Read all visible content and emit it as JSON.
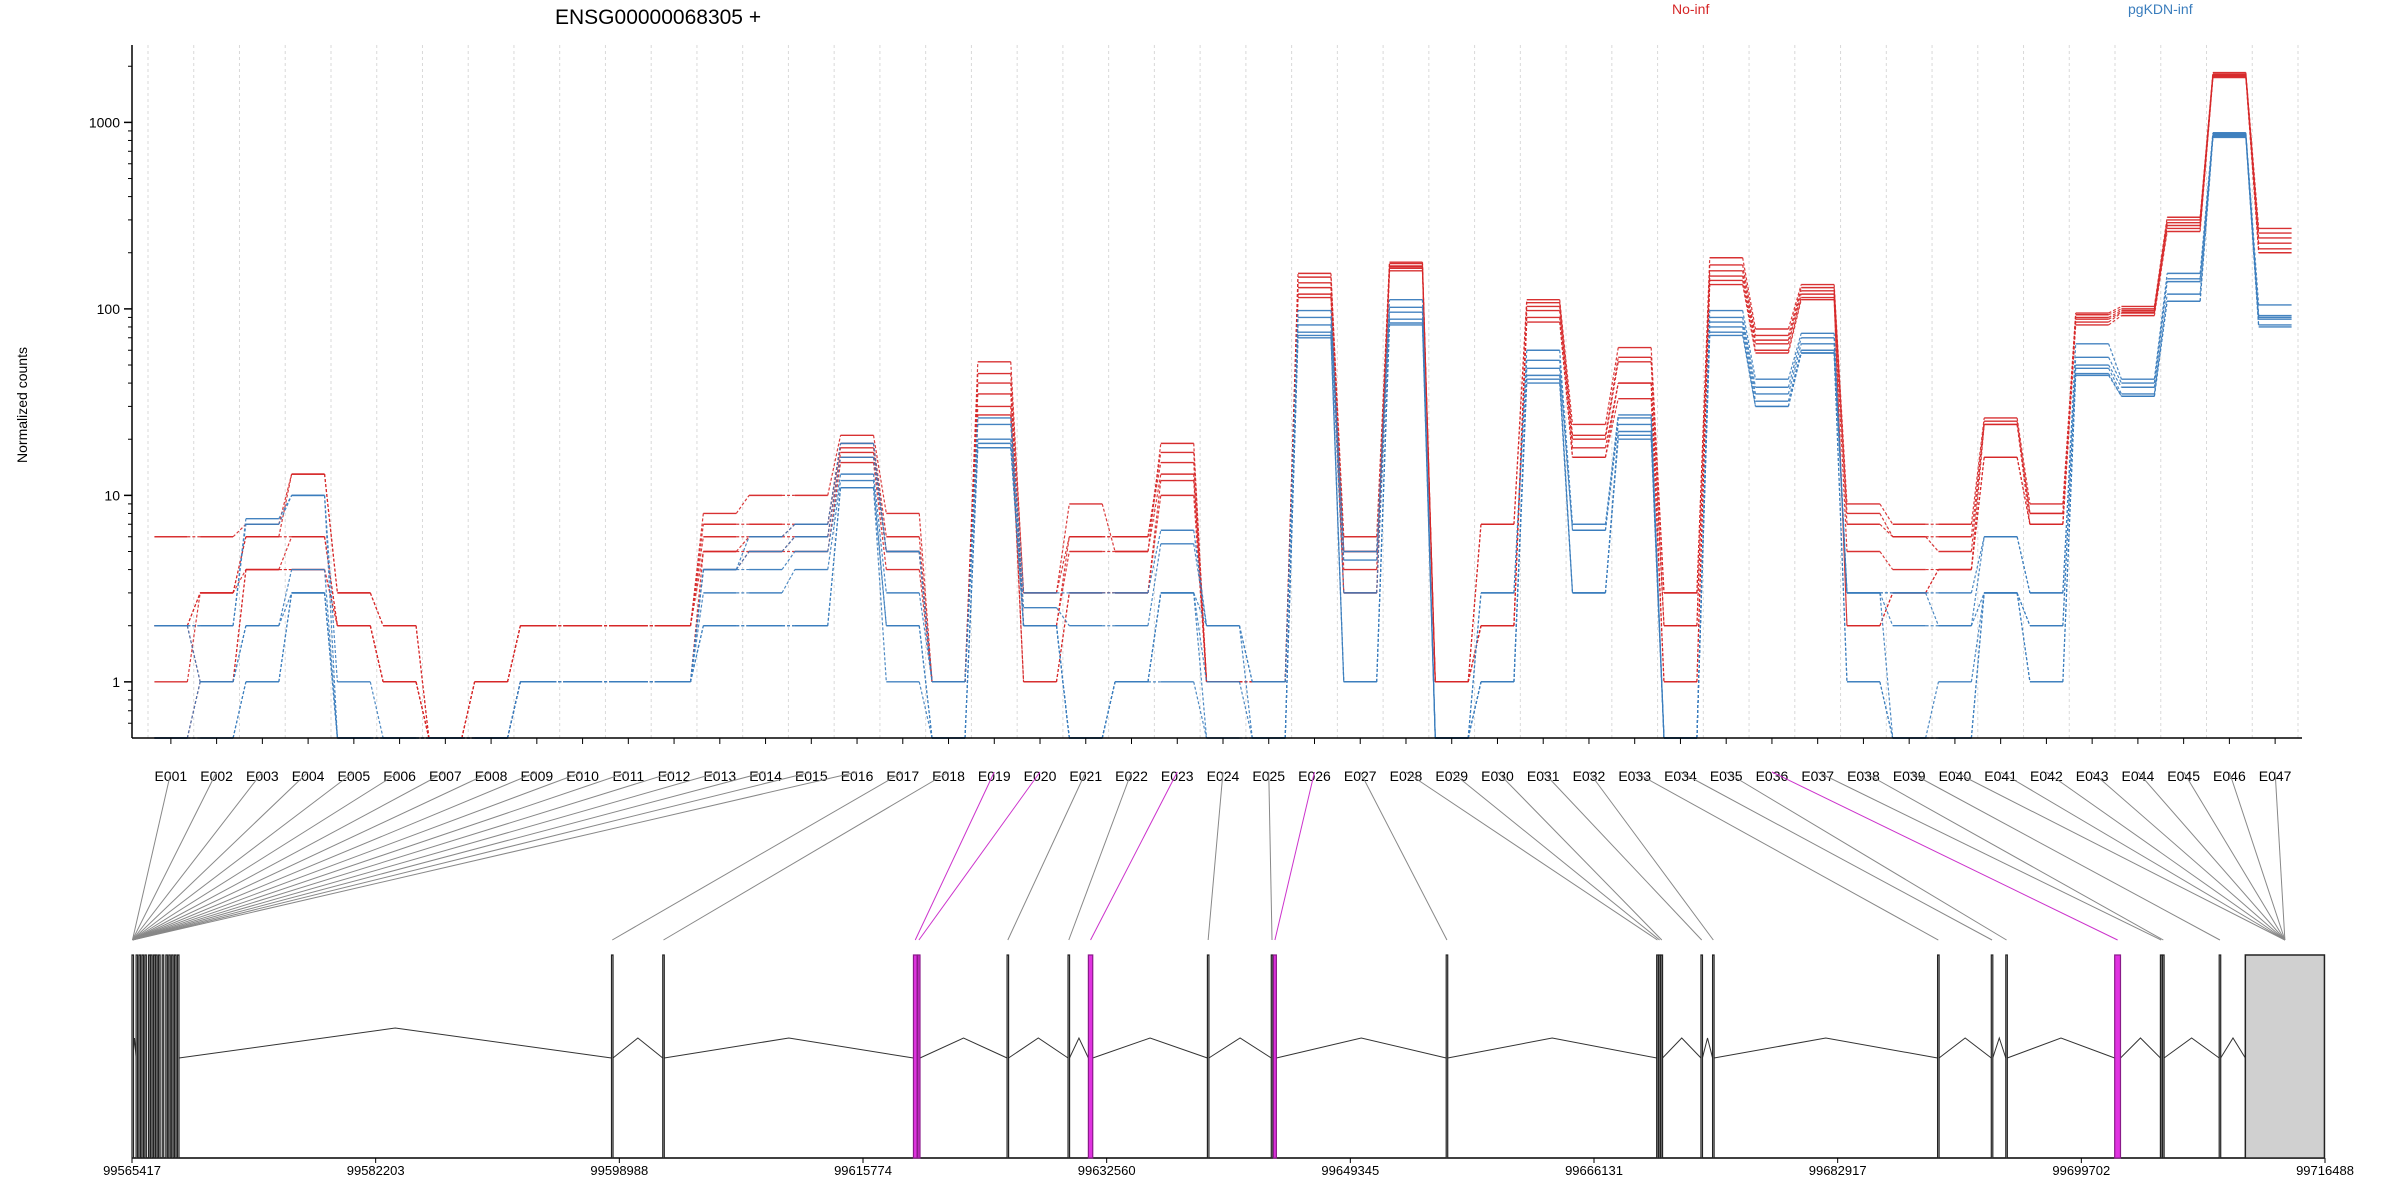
{
  "chart_data": {
    "type": "line",
    "title": "ENSG00000068305 +",
    "ylabel": "Normalized counts",
    "xlabel": "",
    "y_scale": "log",
    "ylim": [
      0.5,
      2600
    ],
    "y_ticks": [
      1,
      10,
      100,
      1000
    ],
    "y_tick_labels": [
      "1",
      "10",
      "100",
      "1000"
    ],
    "grid": "vertical dashed lines at exon boundaries",
    "colors": {
      "No-inf": "#d62728",
      "pgKDN-inf": "#3a7dbd",
      "highlight": "#cc33cc",
      "connector": "#888888"
    },
    "categories": [
      "E001",
      "E002",
      "E003",
      "E004",
      "E005",
      "E006",
      "E007",
      "E008",
      "E009",
      "E010",
      "E011",
      "E012",
      "E013",
      "E014",
      "E015",
      "E016",
      "E017",
      "E018",
      "E019",
      "E020",
      "E021",
      "E022",
      "E023",
      "E024",
      "E025",
      "E026",
      "E027",
      "E028",
      "E029",
      "E030",
      "E031",
      "E032",
      "E033",
      "E034",
      "E035",
      "E036",
      "E037",
      "E038",
      "E039",
      "E040",
      "E041",
      "E042",
      "E043",
      "E044",
      "E045",
      "E046",
      "E047"
    ],
    "legend": [
      {
        "name": "No-inf",
        "color": "#d62728"
      },
      {
        "name": "pgKDN-inf",
        "color": "#3a7dbd"
      }
    ],
    "series": [
      {
        "name": "No-inf",
        "group": "No-inf",
        "values": [
          6,
          6,
          7,
          13,
          3,
          2,
          0.5,
          1,
          2,
          2,
          2,
          2,
          8,
          10,
          10,
          21,
          8,
          1,
          52,
          3,
          9,
          5,
          19,
          1,
          1,
          155,
          6,
          178,
          1,
          7,
          112,
          24,
          62,
          3,
          188,
          78,
          135,
          9,
          7,
          7,
          26,
          9,
          95,
          103,
          310,
          1850,
          270
        ]
      },
      {
        "name": "No-inf",
        "group": "No-inf",
        "values": [
          2,
          3,
          6,
          13,
          3,
          2,
          0.5,
          1,
          2,
          2,
          2,
          2,
          7,
          7,
          7,
          19,
          6,
          1,
          45,
          3,
          6,
          6,
          17,
          1,
          1,
          148,
          5,
          175,
          1,
          7,
          108,
          21,
          55,
          3,
          172,
          72,
          130,
          8,
          6,
          6,
          25,
          8,
          93,
          100,
          300,
          1820,
          255
        ]
      },
      {
        "name": "No-inf",
        "group": "No-inf",
        "values": [
          2,
          3,
          6,
          6,
          2,
          1,
          0.5,
          1,
          2,
          2,
          2,
          2,
          6,
          6,
          7,
          18,
          5,
          1,
          40,
          2,
          6,
          6,
          15,
          1,
          1,
          138,
          5,
          170,
          1,
          2,
          103,
          20,
          52,
          2,
          160,
          68,
          125,
          7,
          6,
          5,
          24,
          8,
          90,
          98,
          290,
          1800,
          240
        ]
      },
      {
        "name": "No-inf",
        "group": "No-inf",
        "values": [
          1,
          3,
          4,
          6,
          2,
          1,
          0.5,
          1,
          2,
          2,
          2,
          2,
          5,
          6,
          6,
          17,
          5,
          1,
          35,
          2,
          5,
          5,
          13,
          1,
          1,
          130,
          4,
          168,
          1,
          2,
          98,
          18,
          40,
          2,
          150,
          65,
          120,
          5,
          4,
          4,
          24,
          7,
          88,
          96,
          280,
          1780,
          225
        ]
      },
      {
        "name": "No-inf",
        "group": "No-inf",
        "values": [
          2,
          1,
          4,
          4,
          2,
          1,
          0.5,
          0.5,
          1,
          1,
          1,
          1,
          5,
          5,
          6,
          16,
          5,
          1,
          30,
          1,
          3,
          3,
          12,
          1,
          1,
          120,
          3,
          165,
          1,
          2,
          90,
          16,
          40,
          1,
          142,
          60,
          115,
          2,
          3,
          4,
          16,
          7,
          85,
          95,
          270,
          1760,
          210
        ]
      },
      {
        "name": "No-inf",
        "group": "No-inf",
        "values": [
          0.5,
          1,
          4,
          4,
          2,
          1,
          0.5,
          0.5,
          1,
          1,
          1,
          1,
          4,
          5,
          5,
          15,
          4,
          1,
          27,
          1,
          3,
          3,
          10,
          1,
          1,
          115,
          3,
          160,
          1,
          2,
          85,
          16,
          33,
          1,
          135,
          58,
          112,
          2,
          3,
          4,
          16,
          7,
          82,
          92,
          260,
          1740,
          200
        ]
      },
      {
        "name": "pgKDN-inf",
        "group": "pgKDN-inf",
        "values": [
          2,
          2,
          7.5,
          10,
          1,
          0.5,
          0.5,
          0.5,
          1,
          1,
          1,
          1,
          4,
          6,
          7,
          19,
          5,
          1,
          26,
          3,
          3,
          3,
          6.5,
          2,
          1,
          98,
          5,
          112,
          0.5,
          3,
          60,
          7,
          27,
          0.5,
          98,
          42,
          74,
          3,
          3,
          3,
          6,
          3,
          65,
          42,
          155,
          880,
          105
        ]
      },
      {
        "name": "pgKDN-inf",
        "group": "pgKDN-inf",
        "values": [
          2,
          2,
          7,
          10,
          0.5,
          0.5,
          0.5,
          0.5,
          1,
          1,
          1,
          1,
          4,
          5,
          6,
          16,
          5,
          1,
          24,
          2.5,
          2,
          2,
          5.5,
          2,
          1,
          90,
          4.5,
          102,
          0.5,
          3,
          53,
          6.5,
          26,
          0.5,
          90,
          38,
          70,
          3,
          3,
          2,
          6,
          3,
          55,
          40,
          145,
          870,
          92
        ]
      },
      {
        "name": "pgKDN-inf",
        "group": "pgKDN-inf",
        "values": [
          2,
          1,
          2,
          4,
          0.5,
          0.5,
          0.5,
          0.5,
          1,
          1,
          1,
          1,
          4,
          4,
          5,
          13,
          3,
          1,
          20,
          2,
          0.5,
          1,
          3,
          2,
          0.5,
          82,
          3,
          96,
          0.5,
          1,
          48,
          6.5,
          24,
          0.5,
          85,
          35,
          65,
          3,
          2,
          2,
          3,
          2,
          50,
          38,
          140,
          860,
          90
        ]
      },
      {
        "name": "pgKDN-inf",
        "group": "pgKDN-inf",
        "values": [
          0.5,
          1,
          2,
          3,
          0.5,
          0.5,
          0.5,
          0.5,
          1,
          1,
          1,
          1,
          3,
          3,
          4,
          12,
          2,
          0.5,
          19,
          2,
          0.5,
          1,
          3,
          1,
          0.5,
          75,
          1,
          88,
          0.5,
          1,
          44,
          3,
          22,
          0.5,
          80,
          32,
          60,
          3,
          0.5,
          1,
          3,
          2,
          48,
          35,
          120,
          850,
          88
        ]
      },
      {
        "name": "pgKDN-inf",
        "group": "pgKDN-inf",
        "values": [
          0.5,
          0.5,
          1,
          3,
          0.5,
          0.5,
          0.5,
          0.5,
          1,
          1,
          1,
          1,
          2,
          2,
          2,
          11,
          2,
          0.5,
          18,
          2,
          0.5,
          1,
          3,
          0.5,
          0.5,
          72,
          1,
          84,
          0.5,
          1,
          42,
          3,
          21,
          0.5,
          75,
          30,
          58,
          1,
          0.5,
          0.5,
          3,
          1,
          45,
          34,
          110,
          840,
          82
        ]
      },
      {
        "name": "pgKDN-inf",
        "group": "pgKDN-inf",
        "values": [
          0.5,
          0.5,
          1,
          3,
          0.5,
          0.5,
          0.5,
          0.5,
          1,
          1,
          1,
          1,
          2,
          2,
          2,
          11,
          1,
          0.5,
          18,
          2,
          0.5,
          1,
          1,
          0.5,
          0.5,
          70,
          1,
          82,
          0.5,
          1,
          40,
          3,
          20,
          0.5,
          72,
          30,
          58,
          1,
          0.5,
          0.5,
          3,
          1,
          44,
          34,
          110,
          830,
          80
        ]
      }
    ],
    "gene_model": {
      "coordinates": [
        "99565417",
        "99582203",
        "99598988",
        "99615774",
        "99632560",
        "99649345",
        "99666131",
        "99682917",
        "99699702",
        "99716488"
      ],
      "genomic_range": [
        99565417,
        99716488
      ],
      "exons": [
        {
          "id": "E001",
          "start": 99565417,
          "end": 99565480,
          "highlight": false
        },
        {
          "id": "E002",
          "start": 99565700,
          "end": 99565800,
          "highlight": false
        },
        {
          "id": "E003",
          "start": 99565900,
          "end": 99565990,
          "highlight": false
        },
        {
          "id": "E004",
          "start": 99566100,
          "end": 99566200,
          "highlight": false
        },
        {
          "id": "E005",
          "start": 99566300,
          "end": 99566400,
          "highlight": false
        },
        {
          "id": "E006",
          "start": 99566550,
          "end": 99566620,
          "highlight": false
        },
        {
          "id": "E007",
          "start": 99566700,
          "end": 99566780,
          "highlight": false
        },
        {
          "id": "E008",
          "start": 99566900,
          "end": 99566980,
          "highlight": false
        },
        {
          "id": "E009",
          "start": 99567050,
          "end": 99567130,
          "highlight": false
        },
        {
          "id": "E010",
          "start": 99567250,
          "end": 99567330,
          "highlight": false
        },
        {
          "id": "E011",
          "start": 99567500,
          "end": 99567580,
          "highlight": false
        },
        {
          "id": "E012",
          "start": 99567750,
          "end": 99567830,
          "highlight": false
        },
        {
          "id": "E013",
          "start": 99567950,
          "end": 99568030,
          "highlight": false
        },
        {
          "id": "E014",
          "start": 99568150,
          "end": 99568230,
          "highlight": false
        },
        {
          "id": "E015",
          "start": 99568350,
          "end": 99568430,
          "highlight": false
        },
        {
          "id": "E016",
          "start": 99568550,
          "end": 99568650,
          "highlight": false
        },
        {
          "id": "E017",
          "start": 99598450,
          "end": 99598550,
          "highlight": false
        },
        {
          "id": "E018",
          "start": 99601980,
          "end": 99602080,
          "highlight": false
        },
        {
          "id": "E019",
          "start": 99619250,
          "end": 99619500,
          "highlight": true
        },
        {
          "id": "E020",
          "start": 99619550,
          "end": 99619700,
          "highlight": true
        },
        {
          "id": "E021",
          "start": 99625700,
          "end": 99625800,
          "highlight": false
        },
        {
          "id": "E022",
          "start": 99629900,
          "end": 99630000,
          "highlight": false
        },
        {
          "id": "E023",
          "start": 99631300,
          "end": 99631600,
          "highlight": true
        },
        {
          "id": "E024",
          "start": 99639500,
          "end": 99639600,
          "highlight": false
        },
        {
          "id": "E025",
          "start": 99643900,
          "end": 99644000,
          "highlight": false
        },
        {
          "id": "E026",
          "start": 99644050,
          "end": 99644250,
          "highlight": true
        },
        {
          "id": "E027",
          "start": 99655950,
          "end": 99656050,
          "highlight": false
        },
        {
          "id": "E028",
          "start": 99670450,
          "end": 99670550,
          "highlight": false
        },
        {
          "id": "E029",
          "start": 99670600,
          "end": 99670700,
          "highlight": false
        },
        {
          "id": "E030",
          "start": 99670750,
          "end": 99670850,
          "highlight": false
        },
        {
          "id": "E031",
          "start": 99673500,
          "end": 99673600,
          "highlight": false
        },
        {
          "id": "E032",
          "start": 99674300,
          "end": 99674400,
          "highlight": false
        },
        {
          "id": "E033",
          "start": 99689800,
          "end": 99689900,
          "highlight": false
        },
        {
          "id": "E034",
          "start": 99693500,
          "end": 99693600,
          "highlight": false
        },
        {
          "id": "E035",
          "start": 99694500,
          "end": 99694600,
          "highlight": false
        },
        {
          "id": "E036",
          "start": 99702000,
          "end": 99702400,
          "highlight": true
        },
        {
          "id": "E037",
          "start": 99705150,
          "end": 99705250,
          "highlight": false
        },
        {
          "id": "E038",
          "start": 99705300,
          "end": 99705400,
          "highlight": false
        },
        {
          "id": "E039",
          "start": 99709200,
          "end": 99709300,
          "highlight": false
        },
        {
          "id": "E040",
          "start": 99711000,
          "end": 99716450,
          "highlight": false,
          "utr": true
        }
      ],
      "exon_bar_links": [
        0,
        0,
        0,
        0,
        0,
        0,
        0,
        0,
        0,
        0,
        0,
        0,
        0,
        0,
        0,
        0,
        16,
        17,
        18,
        19,
        20,
        21,
        22,
        23,
        24,
        25,
        26,
        27,
        28,
        29,
        30,
        31,
        32,
        33,
        34,
        35,
        36,
        37,
        38,
        39,
        39,
        39,
        39,
        39,
        39,
        39,
        39
      ]
    }
  }
}
